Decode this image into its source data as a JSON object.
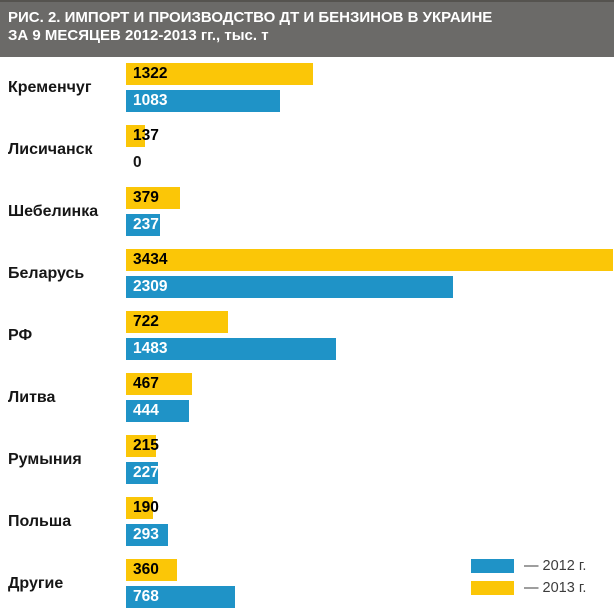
{
  "header": {
    "title_line1": "РИС. 2. ИМПОРТ И ПРОИЗВОДСТВО ДТ И БЕНЗИНОВ В УКРАИНЕ",
    "title_line2": "ЗА 9 МЕСЯЦЕВ 2012-2013 гг., тыс. т"
  },
  "chart_data": {
    "type": "bar",
    "orientation": "horizontal",
    "title": "РИС. 2. ИМПОРТ И ПРОИЗВОДСТВО ДТ И БЕНЗИНОВ В УКРАИНЕ ЗА 9 МЕСЯЦЕВ 2012-2013 гг., тыс. т",
    "unit": "тыс. т",
    "categories": [
      "Кременчуг",
      "Лисичанск",
      "Шебелинка",
      "Беларусь",
      "РФ",
      "Литва",
      "Румыния",
      "Польша",
      "Другие"
    ],
    "series": [
      {
        "name": "2013 г.",
        "color": "#FBC607",
        "values": [
          1322,
          137,
          379,
          3434,
          722,
          467,
          215,
          190,
          360
        ]
      },
      {
        "name": "2012 г.",
        "color": "#1F93C7",
        "values": [
          1083,
          0,
          237,
          2309,
          1483,
          444,
          227,
          293,
          768
        ]
      }
    ],
    "xlim": [
      0,
      3434
    ],
    "grid": false,
    "legend_position": "bottom-right",
    "value_labels": "inside-left"
  },
  "legend": {
    "items": [
      {
        "label": "— 2012 г.",
        "color": "#1F93C7"
      },
      {
        "label": "— 2013 г.",
        "color": "#FBC607"
      }
    ]
  },
  "colors": {
    "header_bg": "#6B6A68",
    "header_top_edge": "#55534F",
    "title_text": "#FFFFFF",
    "bar_yellow": "#FBC607",
    "bar_blue": "#1F93C7",
    "label_text": "#161616",
    "legend_text": "#3C3C3C",
    "background": "#FFFFFF"
  }
}
